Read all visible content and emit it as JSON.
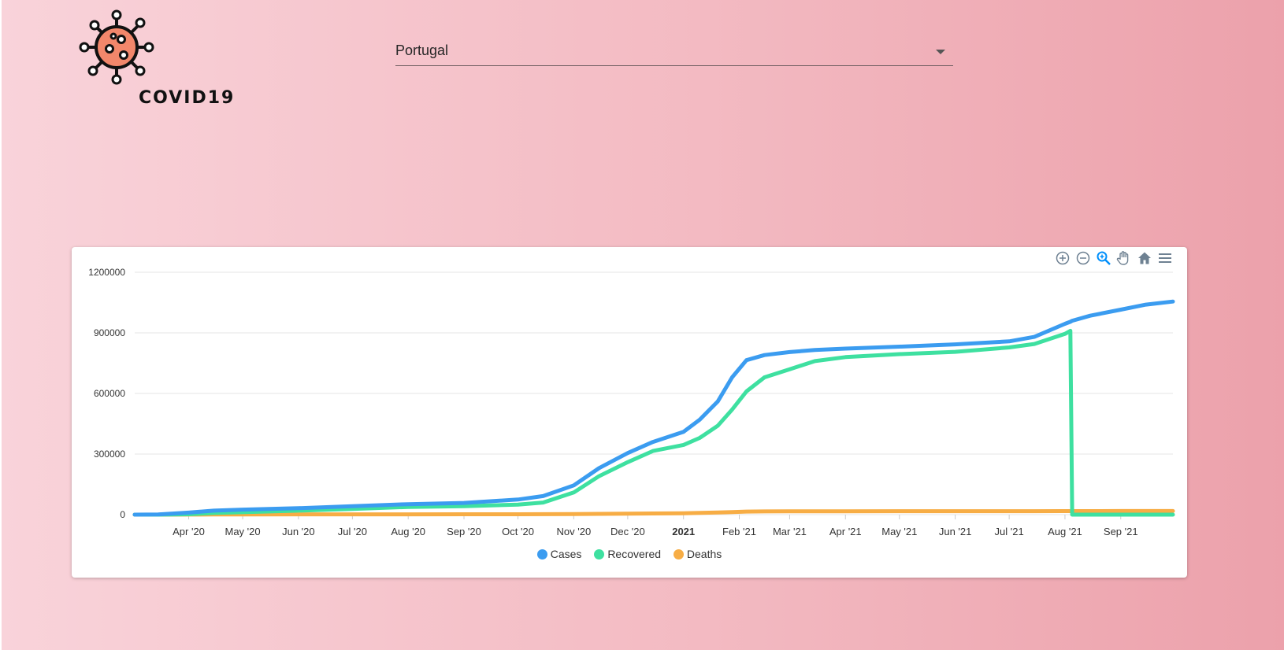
{
  "logo": {
    "text": "COVID19",
    "icon": "virus-icon",
    "color": "#f2876b"
  },
  "country_select": {
    "value": "Portugal"
  },
  "toolbar": {
    "items": [
      "zoom-in-icon",
      "zoom-out-icon",
      "selection-zoom-icon",
      "pan-icon",
      "reset-home-icon",
      "menu-icon"
    ]
  },
  "chart_data": {
    "type": "line",
    "x": [
      "2020-03-02",
      "2020-03-15",
      "2020-04-01",
      "2020-04-15",
      "2020-05-01",
      "2020-06-01",
      "2020-07-01",
      "2020-08-01",
      "2020-09-01",
      "2020-10-01",
      "2020-10-15",
      "2020-11-01",
      "2020-11-15",
      "2020-12-01",
      "2020-12-15",
      "2021-01-01",
      "2021-01-10",
      "2021-01-20",
      "2021-01-28",
      "2021-02-05",
      "2021-02-15",
      "2021-03-01",
      "2021-03-15",
      "2021-04-01",
      "2021-05-01",
      "2021-06-01",
      "2021-07-01",
      "2021-07-15",
      "2021-08-01",
      "2021-08-04",
      "2021-08-05",
      "2021-08-15",
      "2021-09-01",
      "2021-09-15",
      "2021-09-30"
    ],
    "series": [
      {
        "name": "Cases",
        "color": "#3b9cf0",
        "values": [
          0,
          1000,
          10000,
          20000,
          25000,
          32000,
          42000,
          52000,
          58000,
          75000,
          92000,
          145000,
          230000,
          305000,
          360000,
          410000,
          470000,
          560000,
          680000,
          765000,
          790000,
          805000,
          815000,
          822000,
          832000,
          843000,
          858000,
          880000,
          945000,
          955000,
          960000,
          985000,
          1015000,
          1040000,
          1055000
        ]
      },
      {
        "name": "Recovered",
        "color": "#3ee0a0",
        "values": [
          0,
          100,
          2000,
          8000,
          12000,
          20000,
          28000,
          38000,
          42000,
          50000,
          60000,
          110000,
          190000,
          260000,
          315000,
          345000,
          380000,
          440000,
          520000,
          610000,
          680000,
          720000,
          760000,
          780000,
          795000,
          806000,
          828000,
          845000,
          895000,
          910000,
          0,
          0,
          0,
          0,
          0
        ]
      },
      {
        "name": "Deaths",
        "color": "#f7ad45",
        "values": [
          0,
          0,
          500,
          800,
          1100,
          1400,
          1600,
          1750,
          1850,
          2000,
          2300,
          2900,
          3800,
          4700,
          5800,
          7100,
          8500,
          11000,
          13000,
          15000,
          16000,
          16500,
          16800,
          16900,
          17000,
          17050,
          17150,
          17300,
          17450,
          17500,
          17520,
          17650,
          17800,
          17900,
          17950
        ]
      }
    ],
    "x_ticks": [
      "Apr '20",
      "May '20",
      "Jun '20",
      "Jul '20",
      "Aug '20",
      "Sep '20",
      "Oct '20",
      "Nov '20",
      "Dec '20",
      "2021",
      "Feb '21",
      "Mar '21",
      "Apr '21",
      "May '21",
      "Jun '21",
      "Jul '21",
      "Aug '21",
      "Sep '21"
    ],
    "x_tick_dates": [
      "2020-04-01",
      "2020-05-01",
      "2020-06-01",
      "2020-07-01",
      "2020-08-01",
      "2020-09-01",
      "2020-10-01",
      "2020-11-01",
      "2020-12-01",
      "2021-01-01",
      "2021-02-01",
      "2021-03-01",
      "2021-04-01",
      "2021-05-01",
      "2021-06-01",
      "2021-07-01",
      "2021-08-01",
      "2021-09-01"
    ],
    "x_range": [
      "2020-03-02",
      "2021-09-30"
    ],
    "y_ticks": [
      0,
      300000,
      600000,
      900000,
      1200000
    ],
    "ylim": [
      0,
      1200000
    ],
    "grid": true,
    "legend": "bottom-center"
  }
}
